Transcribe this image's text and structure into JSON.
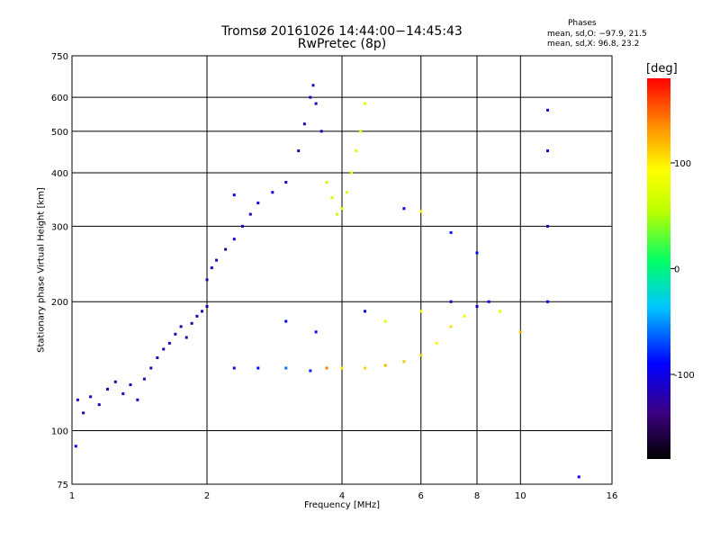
{
  "chart_data": {
    "type": "scatter",
    "title": "Tromsø 20161026 14:44:00−14:45:43",
    "subtitle": "RwPretec (8p)",
    "xlabel": "Frequency [MHz]",
    "ylabel": "Stationary phase Virtual Height [km]",
    "x_scale": "log",
    "y_scale": "log",
    "xlim": [
      1,
      16
    ],
    "ylim": [
      75,
      750
    ],
    "x_ticks": [
      1,
      2,
      4,
      6,
      8,
      10,
      16
    ],
    "y_ticks": [
      75,
      100,
      200,
      300,
      400,
      500,
      600,
      750
    ],
    "grid": true,
    "phases": {
      "title": "Phases",
      "o_line": "mean, sd,O: −97.9, 21.5",
      "x_line": "mean, sd,X:  96.8, 23.2"
    },
    "colorbar": {
      "title": "[deg]",
      "ticks": [
        100,
        0,
        -100
      ],
      "range": [
        -180,
        180
      ]
    },
    "series": [
      {
        "name": "echoes",
        "points": [
          [
            1.03,
            118,
            -110
          ],
          [
            1.06,
            110,
            -115
          ],
          [
            1.1,
            120,
            -112
          ],
          [
            1.15,
            115,
            -118
          ],
          [
            1.2,
            125,
            -110
          ],
          [
            1.25,
            130,
            -120
          ],
          [
            1.3,
            122,
            -115
          ],
          [
            1.35,
            128,
            -118
          ],
          [
            1.4,
            118,
            -112
          ],
          [
            1.45,
            132,
            -120
          ],
          [
            1.5,
            140,
            -118
          ],
          [
            1.55,
            148,
            -115
          ],
          [
            1.6,
            155,
            -120
          ],
          [
            1.65,
            160,
            -112
          ],
          [
            1.7,
            168,
            -118
          ],
          [
            1.75,
            175,
            -115
          ],
          [
            1.8,
            165,
            -120
          ],
          [
            1.85,
            178,
            -118
          ],
          [
            1.9,
            185,
            -112
          ],
          [
            1.95,
            190,
            -115
          ],
          [
            2.0,
            195,
            -118
          ],
          [
            2.0,
            225,
            -120
          ],
          [
            2.05,
            240,
            -115
          ],
          [
            2.1,
            250,
            -118
          ],
          [
            2.2,
            265,
            -120
          ],
          [
            2.3,
            280,
            -112
          ],
          [
            2.4,
            300,
            -118
          ],
          [
            2.5,
            320,
            -115
          ],
          [
            2.3,
            355,
            -95
          ],
          [
            2.6,
            340,
            -100
          ],
          [
            2.8,
            360,
            -102
          ],
          [
            3.0,
            380,
            -110
          ],
          [
            3.2,
            450,
            -118
          ],
          [
            3.3,
            520,
            -115
          ],
          [
            3.4,
            600,
            -118
          ],
          [
            3.45,
            640,
            -120
          ],
          [
            3.5,
            580,
            -115
          ],
          [
            3.6,
            500,
            -110
          ],
          [
            3.7,
            380,
            60
          ],
          [
            3.8,
            350,
            70
          ],
          [
            3.9,
            320,
            65
          ],
          [
            4.0,
            330,
            75
          ],
          [
            4.1,
            360,
            72
          ],
          [
            4.2,
            400,
            78
          ],
          [
            4.3,
            450,
            76
          ],
          [
            4.4,
            500,
            80
          ],
          [
            4.5,
            580,
            82
          ],
          [
            2.3,
            140,
            -110
          ],
          [
            2.6,
            140,
            -90
          ],
          [
            3.0,
            140,
            -60
          ],
          [
            3.4,
            138,
            -80
          ],
          [
            3.7,
            140,
            140
          ],
          [
            4.0,
            140,
            100
          ],
          [
            4.5,
            140,
            110
          ],
          [
            5.0,
            142,
            120
          ],
          [
            5.5,
            145,
            115
          ],
          [
            6.0,
            150,
            110
          ],
          [
            6.5,
            160,
            95
          ],
          [
            7.0,
            175,
            105
          ],
          [
            7.5,
            185,
            90
          ],
          [
            3.0,
            180,
            -95
          ],
          [
            3.5,
            170,
            -100
          ],
          [
            4.5,
            190,
            -98
          ],
          [
            5.0,
            180,
            80
          ],
          [
            6.0,
            190,
            85
          ],
          [
            7.0,
            200,
            -105
          ],
          [
            8.0,
            195,
            -110
          ],
          [
            8.5,
            200,
            -100
          ],
          [
            5.5,
            330,
            -95
          ],
          [
            6.0,
            325,
            90
          ],
          [
            7.0,
            290,
            -85
          ],
          [
            8.0,
            260,
            -90
          ],
          [
            9.0,
            190,
            85
          ],
          [
            10.0,
            170,
            120
          ],
          [
            11.5,
            560,
            -110
          ],
          [
            11.5,
            450,
            -105
          ],
          [
            11.5,
            300,
            -115
          ],
          [
            11.5,
            200,
            -90
          ],
          [
            13.5,
            78,
            -100
          ],
          [
            1.02,
            92,
            -100
          ]
        ]
      }
    ]
  }
}
